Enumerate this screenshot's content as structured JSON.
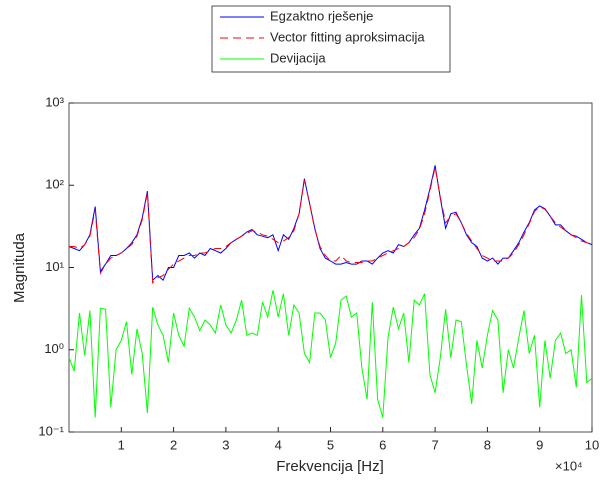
{
  "chart_data": {
    "type": "line",
    "x_label": "Frekvencija [Hz]",
    "y_label": "Magnituda",
    "x_multiplier": "×10⁴",
    "log_y": true,
    "xlim": [
      0,
      100000
    ],
    "ylim": [
      0.1,
      1000
    ],
    "xticks": [
      {
        "value": 10000,
        "label": "1"
      },
      {
        "value": 20000,
        "label": "2"
      },
      {
        "value": 30000,
        "label": "3"
      },
      {
        "value": 40000,
        "label": "4"
      },
      {
        "value": 50000,
        "label": "5"
      },
      {
        "value": 60000,
        "label": "6"
      },
      {
        "value": 70000,
        "label": "7"
      },
      {
        "value": 80000,
        "label": "8"
      },
      {
        "value": 90000,
        "label": "9"
      },
      {
        "value": 100000,
        "label": "10"
      }
    ],
    "yticks": [
      {
        "value": 0.1,
        "label": "10⁻¹"
      },
      {
        "value": 1,
        "label": "10⁰"
      },
      {
        "value": 10,
        "label": "10¹"
      },
      {
        "value": 100,
        "label": "10²"
      },
      {
        "value": 1000,
        "label": "10³"
      }
    ],
    "x": [
      0,
      1000,
      2000,
      3000,
      4000,
      5000,
      6000,
      7000,
      8000,
      9000,
      10000,
      11000,
      12000,
      13000,
      14000,
      15000,
      16000,
      17000,
      18000,
      19000,
      20000,
      21000,
      22000,
      23000,
      24000,
      25000,
      26000,
      27000,
      28000,
      29000,
      30000,
      31000,
      32000,
      33000,
      34000,
      35000,
      36000,
      37000,
      38000,
      39000,
      40000,
      41000,
      42000,
      43000,
      44000,
      45000,
      46000,
      47000,
      48000,
      49000,
      50000,
      51000,
      52000,
      53000,
      54000,
      55000,
      56000,
      57000,
      58000,
      59000,
      60000,
      61000,
      62000,
      63000,
      64000,
      65000,
      66000,
      67000,
      68000,
      69000,
      70000,
      71000,
      72000,
      73000,
      74000,
      75000,
      76000,
      77000,
      78000,
      79000,
      80000,
      81000,
      82000,
      83000,
      84000,
      85000,
      86000,
      87000,
      88000,
      89000,
      90000,
      91000,
      92000,
      93000,
      94000,
      95000,
      96000,
      97000,
      98000,
      99000,
      100000
    ],
    "series": [
      {
        "name": "Egzaktno rješenje",
        "color": "#0000ff",
        "dash": "none",
        "values": [
          18,
          17,
          16,
          19,
          25,
          55,
          9,
          11,
          14,
          14,
          15,
          17,
          20,
          25,
          40,
          85,
          7,
          8,
          7,
          10,
          10,
          14,
          14,
          15,
          13,
          15,
          14,
          17,
          16,
          15,
          17,
          20,
          22,
          24,
          27,
          29,
          25,
          24,
          23,
          25,
          16,
          25,
          22,
          30,
          45,
          120,
          60,
          30,
          17,
          13,
          12,
          11,
          11,
          11.5,
          11,
          11,
          12,
          12,
          11,
          13,
          15,
          16,
          15,
          19,
          18,
          20,
          25,
          30,
          50,
          90,
          175,
          70,
          30,
          45,
          47,
          35,
          25,
          20,
          18,
          13,
          12,
          13,
          11,
          13,
          13,
          16,
          20,
          27,
          35,
          50,
          56,
          52,
          42,
          33,
          33,
          28,
          25,
          24,
          22,
          20,
          19
        ]
      },
      {
        "name": "Vector fitting aproksimacija",
        "color": "#ff0000",
        "dash": "8,5",
        "values": [
          18,
          18,
          17,
          19,
          24,
          50,
          8.5,
          11,
          13,
          14,
          15,
          17,
          19,
          24,
          38,
          80,
          6.5,
          7.5,
          8,
          9.5,
          11,
          12,
          13,
          14,
          14,
          15,
          15,
          16,
          17,
          17,
          18,
          20,
          22,
          24,
          26,
          28,
          27,
          25,
          24,
          22,
          20,
          21,
          23,
          28,
          45,
          115,
          60,
          29,
          18,
          14,
          12,
          12,
          14,
          12,
          11.5,
          11.5,
          11.5,
          12,
          12,
          13,
          14,
          15,
          16,
          17,
          18,
          20,
          23,
          29,
          45,
          85,
          165,
          72,
          35,
          42,
          45,
          35,
          26,
          21,
          17,
          14,
          13,
          12,
          12,
          12,
          13,
          15,
          19,
          25,
          34,
          48,
          55,
          51,
          42,
          35,
          31,
          28,
          25,
          23,
          21,
          20,
          19
        ]
      },
      {
        "name": "Devijacija",
        "color": "#00ff00",
        "dash": "none",
        "values": [
          0.8,
          0.55,
          2.8,
          0.85,
          3,
          0.15,
          3.2,
          3.1,
          0.2,
          1,
          1.3,
          2.2,
          0.5,
          1.8,
          0.9,
          0.17,
          3.3,
          2,
          1.5,
          0.7,
          2.8,
          1.5,
          1.1,
          3.2,
          2.5,
          1.7,
          2.3,
          2,
          1.6,
          3.5,
          2,
          1.6,
          2.3,
          4,
          1.5,
          1.6,
          1.5,
          3.8,
          2.5,
          5.3,
          2.5,
          4.8,
          1.5,
          3.5,
          2.8,
          0.9,
          0.7,
          2.8,
          2.8,
          2.3,
          0.8,
          1.2,
          4,
          4.5,
          2.5,
          2.8,
          0.6,
          0.25,
          3.8,
          0.25,
          0.15,
          1.4,
          3.3,
          1.8,
          2.8,
          0.7,
          4,
          3.5,
          4.8,
          0.5,
          0.3,
          0.8,
          3.1,
          0.8,
          2.3,
          2.2,
          0.65,
          0.22,
          1.3,
          0.6,
          1.5,
          3,
          2.3,
          0.3,
          1,
          0.6,
          1.4,
          3,
          0.9,
          1.5,
          0.2,
          1.3,
          0.45,
          1.3,
          1.6,
          0.9,
          1,
          0.35,
          4.6,
          0.4,
          0.45
        ]
      }
    ]
  }
}
